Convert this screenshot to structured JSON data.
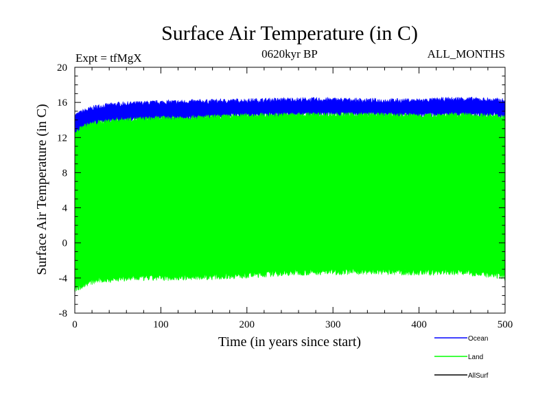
{
  "chart_data": {
    "type": "area",
    "title": "Surface Air Temperature (in C)",
    "subtitle_left": "Expt = tfMgX",
    "subtitle_center": "0620kyr BP",
    "subtitle_right": "ALL_MONTHS",
    "xlabel": "Time (in years since start)",
    "ylabel": "Surface Air Temperature (in C)",
    "xlim": [
      0,
      500
    ],
    "ylim": [
      -8,
      20
    ],
    "x_ticks": [
      "0",
      "100",
      "200",
      "300",
      "400",
      "500"
    ],
    "y_ticks": [
      "-8",
      "-4",
      "0",
      "4",
      "8",
      "12",
      "16",
      "20"
    ],
    "grid": false,
    "legend_position": "bottom-right",
    "x": [
      0,
      10,
      25,
      50,
      75,
      100,
      150,
      200,
      250,
      300,
      350,
      400,
      450,
      500
    ],
    "series": [
      {
        "name": "Ocean",
        "color": "#0000ff",
        "lower": [
          12.3,
          13.2,
          13.6,
          13.9,
          14.0,
          14.1,
          14.3,
          14.5,
          14.6,
          14.6,
          14.6,
          14.5,
          14.6,
          14.5
        ],
        "upper": [
          14.5,
          15.0,
          15.5,
          15.8,
          15.9,
          16.0,
          16.1,
          16.2,
          16.3,
          16.3,
          16.2,
          16.2,
          16.4,
          16.2
        ]
      },
      {
        "name": "Land",
        "color": "#00ff00",
        "lower": [
          -5.3,
          -4.8,
          -4.3,
          -4.1,
          -4.0,
          -4.0,
          -3.9,
          -3.7,
          -3.4,
          -3.3,
          -3.3,
          -3.4,
          -3.3,
          -3.9
        ],
        "upper": [
          12.5,
          13.3,
          13.7,
          14.0,
          14.1,
          14.2,
          14.3,
          14.5,
          14.6,
          14.6,
          14.6,
          14.5,
          14.6,
          14.4
        ]
      },
      {
        "name": "AllSurf",
        "color": "#000000",
        "lower": [],
        "upper": []
      }
    ]
  }
}
